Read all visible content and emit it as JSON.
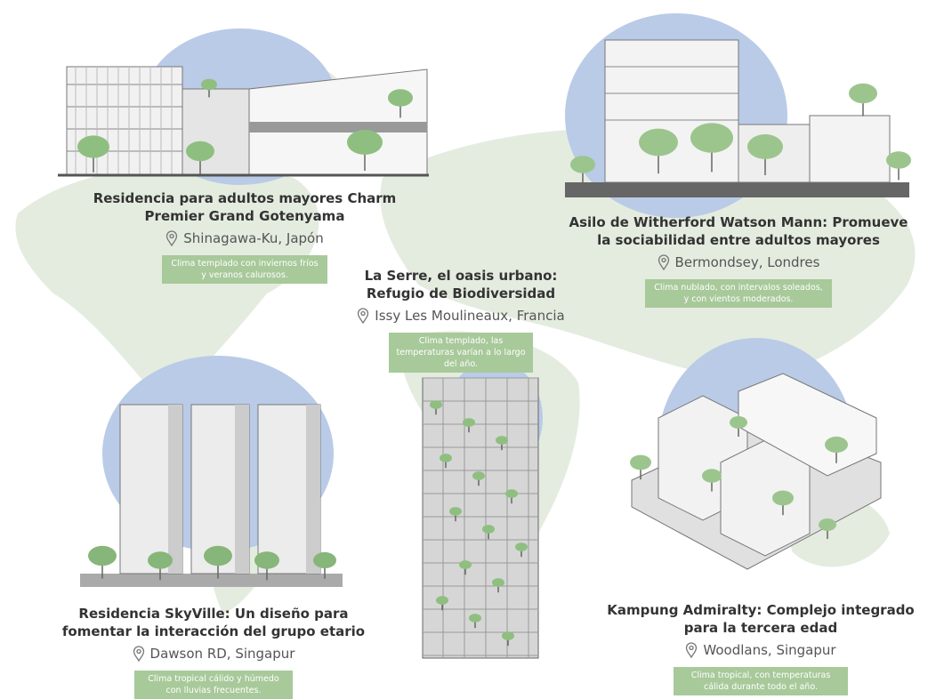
{
  "projects": [
    {
      "title": "Residencia para adultos mayores Charm Premier Grand Gotenyama",
      "location": "Shinagawa-Ku,  Japón",
      "climate": "Clima templado con inviernos fríos y veranos calurosos."
    },
    {
      "title": "Asilo de Witherford Watson Mann: Promueve la sociabilidad entre adultos mayores",
      "location": "Bermondsey, Londres",
      "climate": "Clima nublado, con intervalos soleados, y con vientos moderados."
    },
    {
      "title": "La Serre, el oasis urbano: Refugio de Biodiversidad",
      "location": "Issy Les Moulineaux, Francia",
      "climate": "Clima templado, las temperaturas varían a lo largo del año."
    },
    {
      "title": "Residencia SkyVille: Un diseño para fomentar la interacción del grupo etario",
      "location": "Dawson RD, Singapur",
      "climate": "Clima tropical cálido y húmedo con lluvias frecuentes."
    },
    {
      "title": "Kampung Admiralty: Complejo integrado para la tercera edad",
      "location": "Woodlans, Singapur",
      "climate": "Clima tropical, con temperaturas cálida durante todo el año."
    }
  ]
}
